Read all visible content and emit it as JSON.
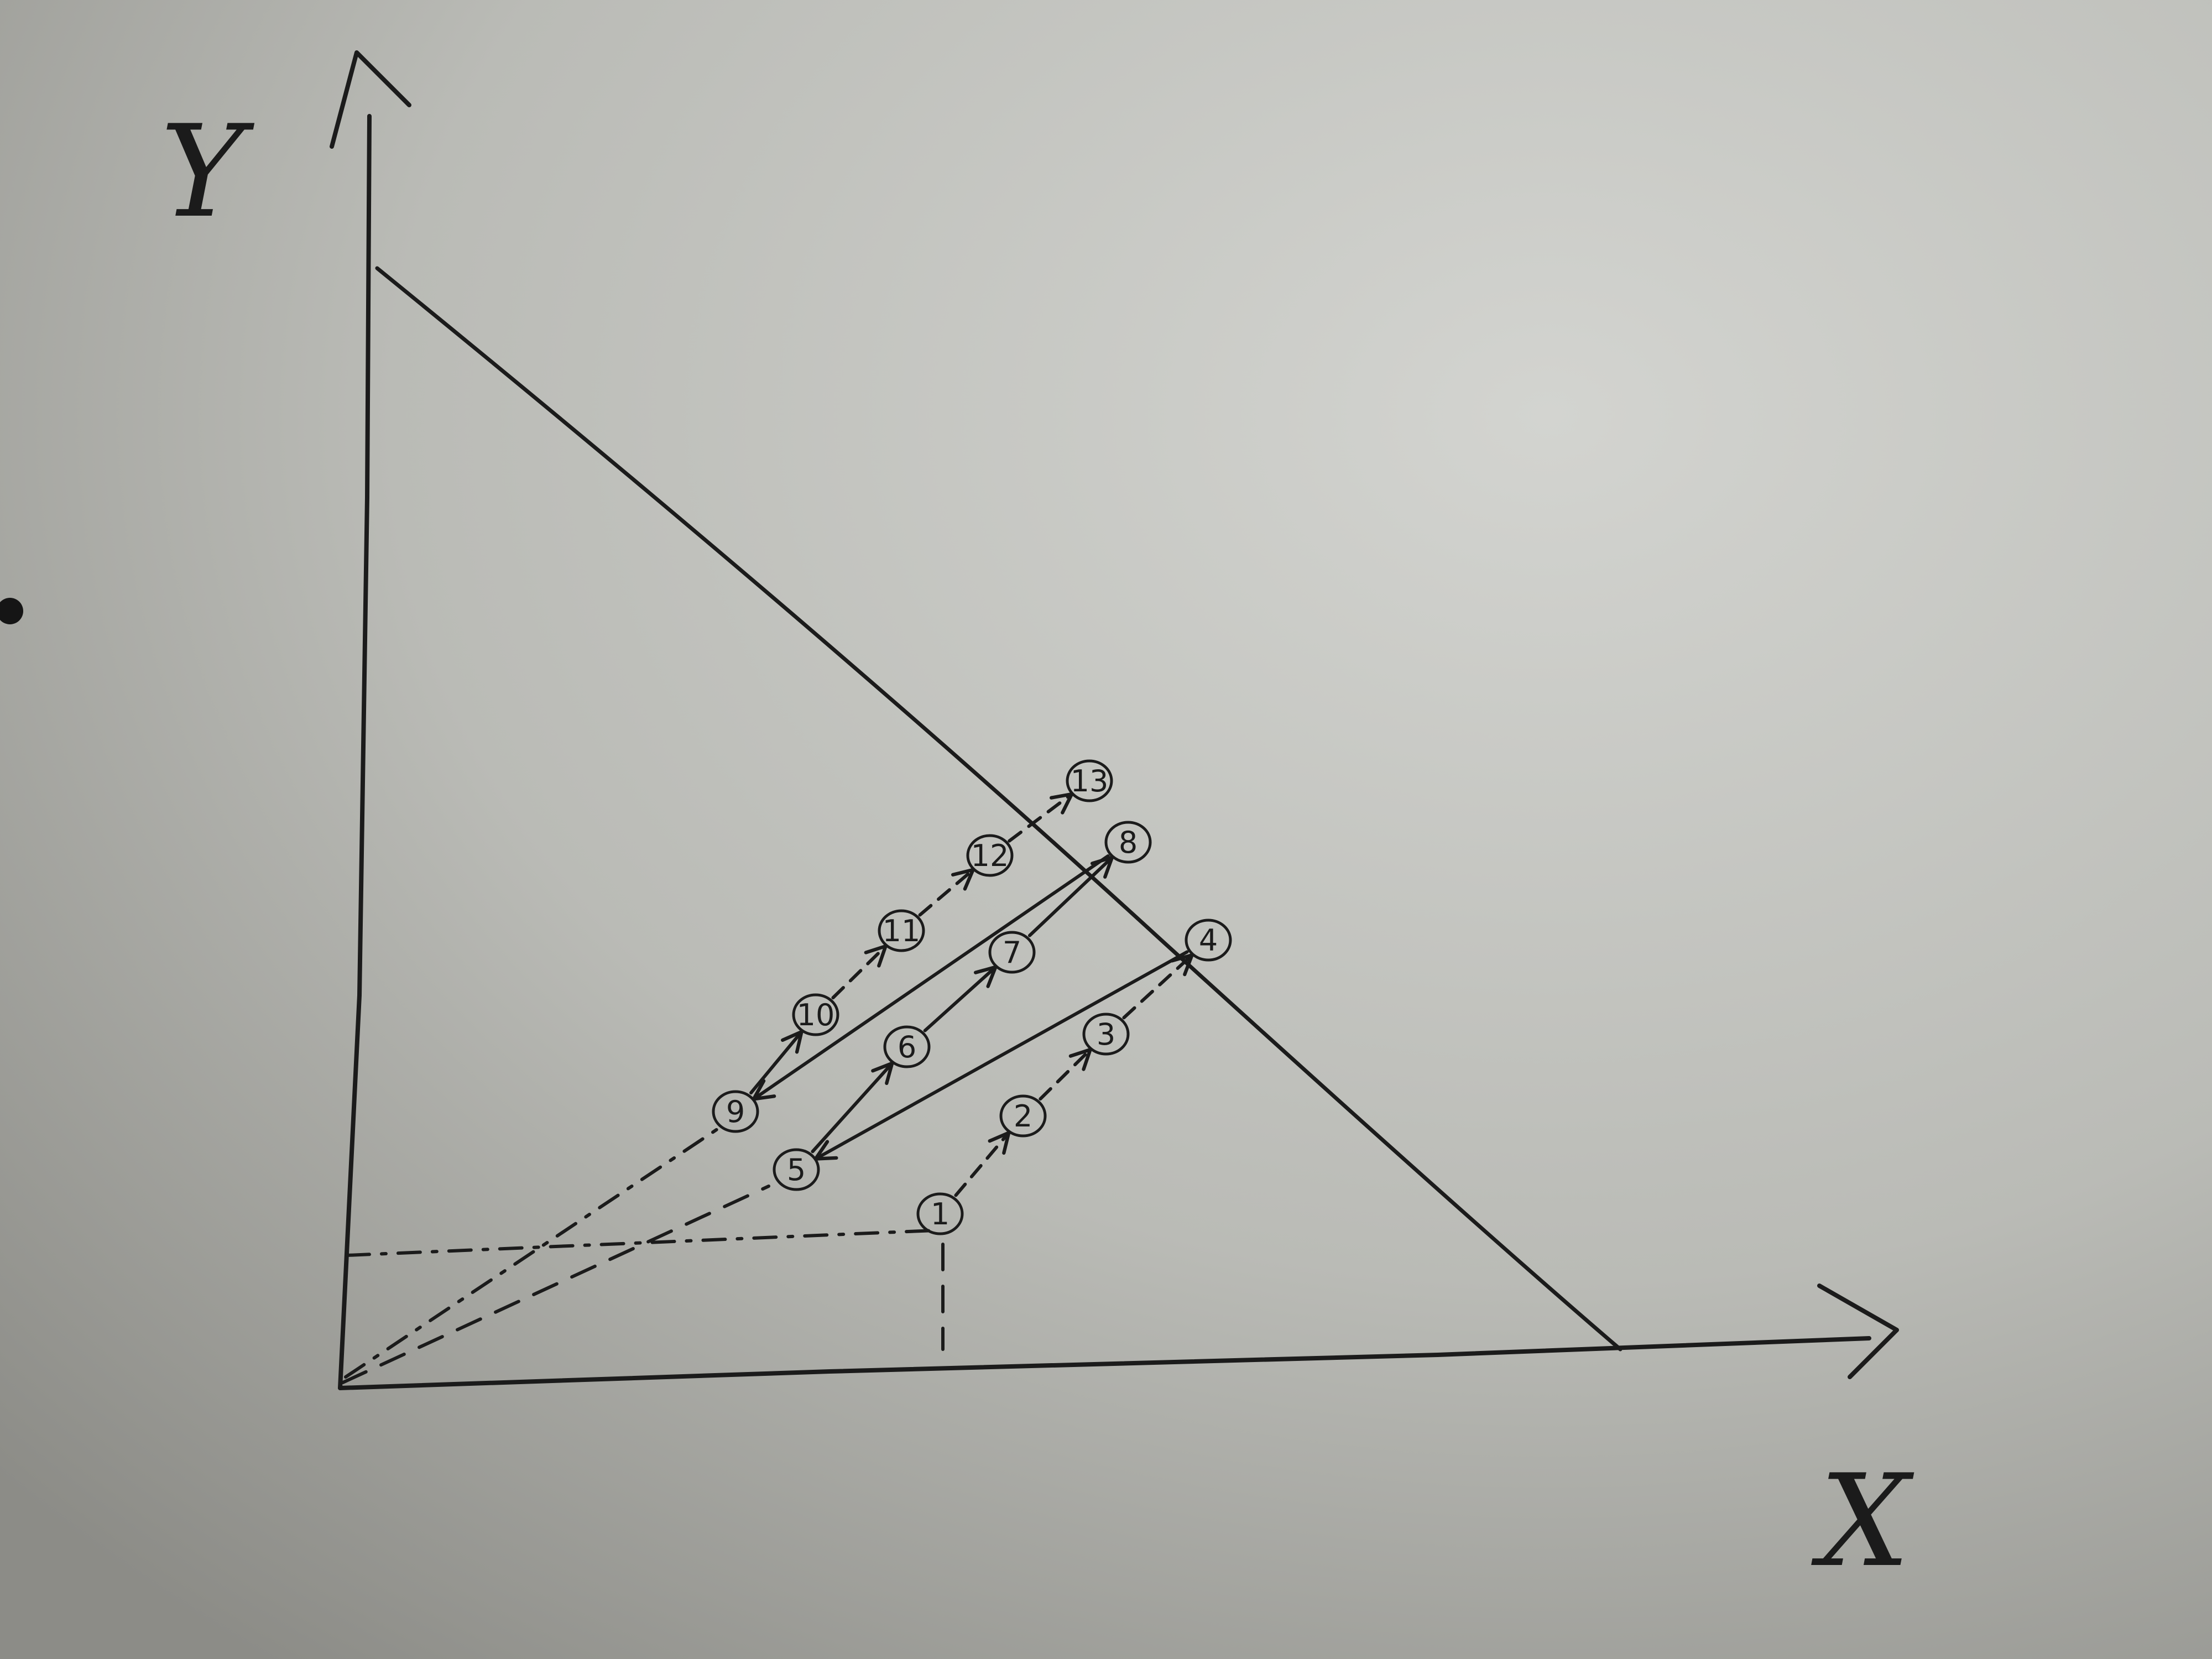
{
  "diagram": {
    "axes": {
      "y_label": "Y",
      "x_label": "X"
    },
    "nodes": [
      {
        "id": "1",
        "label": "1"
      },
      {
        "id": "2",
        "label": "2"
      },
      {
        "id": "3",
        "label": "3"
      },
      {
        "id": "4",
        "label": "4"
      },
      {
        "id": "5",
        "label": "5"
      },
      {
        "id": "6",
        "label": "6"
      },
      {
        "id": "7",
        "label": "7"
      },
      {
        "id": "8",
        "label": "8"
      },
      {
        "id": "9",
        "label": "9"
      },
      {
        "id": "10",
        "label": "10"
      },
      {
        "id": "11",
        "label": "11"
      },
      {
        "id": "12",
        "label": "12"
      },
      {
        "id": "13",
        "label": "13"
      }
    ],
    "edges": [
      {
        "from": "1",
        "to": "2",
        "style": "dashed-arrow"
      },
      {
        "from": "2",
        "to": "3",
        "style": "dashed-arrow"
      },
      {
        "from": "3",
        "to": "4",
        "style": "dashed-arrow"
      },
      {
        "from": "4",
        "to": "5",
        "style": "solid-arrow"
      },
      {
        "from": "5",
        "to": "6",
        "style": "solid-arrow"
      },
      {
        "from": "6",
        "to": "7",
        "style": "solid-arrow"
      },
      {
        "from": "7",
        "to": "8",
        "style": "solid-arrow"
      },
      {
        "from": "8",
        "to": "9",
        "style": "solid-arrow"
      },
      {
        "from": "9",
        "to": "10",
        "style": "solid-arrow"
      },
      {
        "from": "10",
        "to": "11",
        "style": "dashed-arrow"
      },
      {
        "from": "11",
        "to": "12",
        "style": "dashed-arrow"
      },
      {
        "from": "12",
        "to": "13",
        "style": "dashed-arrow"
      }
    ],
    "ink_color": "#1b1b1b",
    "paper_color": "#b8b9b4"
  }
}
